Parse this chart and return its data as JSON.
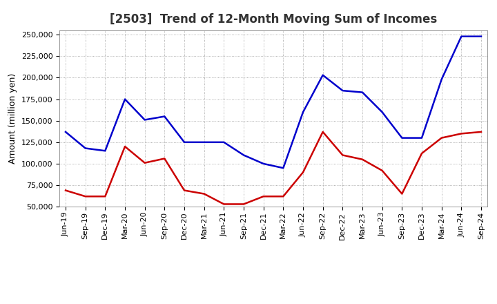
{
  "title": "[2503]  Trend of 12-Month Moving Sum of Incomes",
  "ylabel": "Amount (million yen)",
  "ylim": [
    50000,
    255000
  ],
  "yticks": [
    50000,
    75000,
    100000,
    125000,
    150000,
    175000,
    200000,
    225000,
    250000
  ],
  "x_labels": [
    "Jun-19",
    "Sep-19",
    "Dec-19",
    "Mar-20",
    "Jun-20",
    "Sep-20",
    "Dec-20",
    "Mar-21",
    "Jun-21",
    "Sep-21",
    "Dec-21",
    "Mar-22",
    "Jun-22",
    "Sep-22",
    "Dec-22",
    "Mar-23",
    "Jun-23",
    "Sep-23",
    "Dec-23",
    "Mar-24",
    "Jun-24",
    "Sep-24"
  ],
  "ordinary_income": [
    137000,
    118000,
    115000,
    175000,
    151000,
    155000,
    125000,
    125000,
    125000,
    110000,
    100000,
    95000,
    160000,
    203000,
    185000,
    183000,
    160000,
    130000,
    130000,
    198000,
    248000,
    248000
  ],
  "net_income": [
    69000,
    62000,
    62000,
    120000,
    101000,
    106000,
    69000,
    65000,
    53000,
    53000,
    62000,
    62000,
    90000,
    137000,
    110000,
    105000,
    92000,
    65000,
    112000,
    130000,
    135000,
    137000
  ],
  "ordinary_color": "#0000cc",
  "net_color": "#cc0000",
  "line_width": 1.8,
  "background_color": "#ffffff",
  "grid_color": "#999999",
  "title_fontsize": 12,
  "ylabel_fontsize": 9,
  "tick_fontsize": 8,
  "legend_fontsize": 9
}
